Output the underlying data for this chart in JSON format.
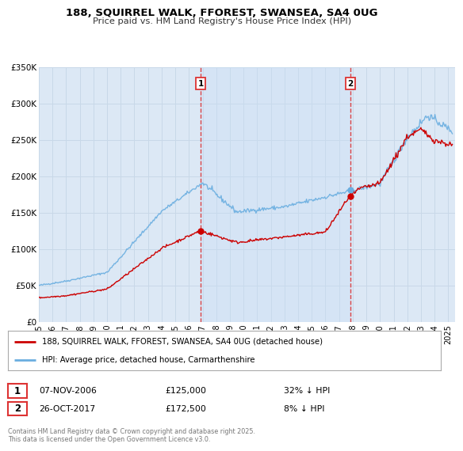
{
  "title": "188, SQUIRREL WALK, FFOREST, SWANSEA, SA4 0UG",
  "subtitle": "Price paid vs. HM Land Registry's House Price Index (HPI)",
  "background_color": "#ffffff",
  "plot_bg_color": "#dce8f5",
  "grid_color": "#c8d8e8",
  "red_line_label": "188, SQUIRREL WALK, FFOREST, SWANSEA, SA4 0UG (detached house)",
  "blue_line_label": "HPI: Average price, detached house, Carmarthenshire",
  "transaction1_date": "07-NOV-2006",
  "transaction1_price": "£125,000",
  "transaction1_note": "32% ↓ HPI",
  "transaction2_date": "26-OCT-2017",
  "transaction2_price": "£172,500",
  "transaction2_note": "8% ↓ HPI",
  "footer": "Contains HM Land Registry data © Crown copyright and database right 2025.\nThis data is licensed under the Open Government Licence v3.0.",
  "ylim": [
    0,
    350000
  ],
  "yticks": [
    0,
    50000,
    100000,
    150000,
    200000,
    250000,
    300000,
    350000
  ],
  "ytick_labels": [
    "£0",
    "£50K",
    "£100K",
    "£150K",
    "£200K",
    "£250K",
    "£300K",
    "£350K"
  ],
  "xmin": 1995.0,
  "xmax": 2025.5,
  "transaction1_x": 2006.85,
  "transaction2_x": 2017.82,
  "transaction1_y_red": 125000,
  "transaction2_y_red": 172500,
  "hpi_color": "#6aaee0",
  "price_color": "#cc0000",
  "vline_color": "#dd3333",
  "span_color": "#ddeeff"
}
